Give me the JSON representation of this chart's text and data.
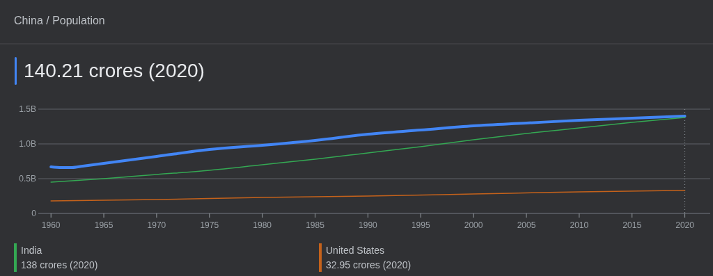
{
  "chart_data": {
    "type": "line",
    "title": "China / Population",
    "subtitle": "140.21 crores (2020)",
    "xlim": [
      1958.8,
      2022.4
    ],
    "xticks": [
      1960,
      1965,
      1970,
      1975,
      1980,
      1985,
      1990,
      1995,
      2000,
      2005,
      2010,
      2015,
      2020
    ],
    "ylim": [
      0,
      1.5
    ],
    "yticks": [
      0,
      {
        "value": 0.5,
        "label": "0.5B"
      },
      {
        "value": 1,
        "label": "1.0B"
      },
      {
        "value": 1.5,
        "label": "1.5B"
      }
    ],
    "grid": "y",
    "legend": "bottom",
    "ref_lines": [
      {
        "axis": "x",
        "value": 2020,
        "line_style": "dotted",
        "color": "#9aa0a6"
      }
    ],
    "annotations": [
      "138 crores (2020)",
      "32.95 crores (2020)"
    ],
    "series": [
      {
        "color": "#4285f4",
        "x": [
          1960,
          1961,
          1962,
          1963,
          1965,
          1970,
          1975,
          1980,
          1985,
          1990,
          1995,
          2000,
          2005,
          2010,
          2015,
          2020
        ],
        "values": [
          0.67,
          0.66,
          0.66,
          0.68,
          0.72,
          0.82,
          0.92,
          0.98,
          1.05,
          1.14,
          1.2,
          1.26,
          1.3,
          1.34,
          1.37,
          1.4
        ]
      },
      {
        "name": "India",
        "color": "#34a853",
        "x": [
          1960,
          1965,
          1970,
          1975,
          1980,
          1985,
          1990,
          1995,
          2000,
          2005,
          2010,
          2015,
          2020
        ],
        "values": [
          0.45,
          0.5,
          0.56,
          0.62,
          0.7,
          0.78,
          0.87,
          0.96,
          1.06,
          1.15,
          1.23,
          1.31,
          1.38
        ]
      },
      {
        "name": "United States",
        "color": "#c5621b",
        "x": [
          1960,
          1970,
          1980,
          1990,
          2000,
          2010,
          2020
        ],
        "values": [
          0.18,
          0.2,
          0.23,
          0.25,
          0.28,
          0.31,
          0.33
        ]
      }
    ]
  }
}
